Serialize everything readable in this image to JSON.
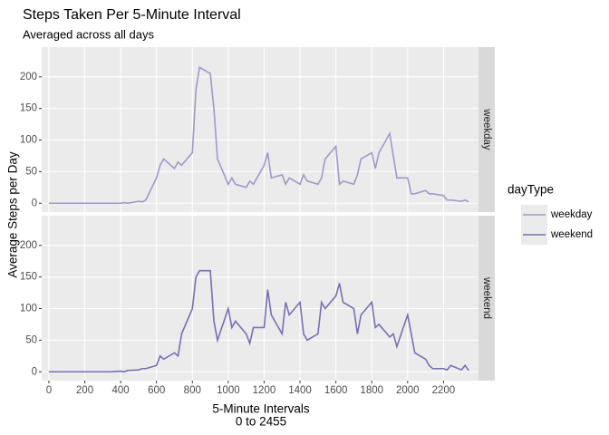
{
  "chart_data": {
    "type": "line",
    "title": "Steps Taken Per 5-Minute Interval",
    "subtitle": "Averaged across all days",
    "x_label": [
      "5-Minute Intervals",
      "0 to 2455"
    ],
    "y_label": "Average Steps per Day",
    "legend_title": "dayType",
    "legend_position": "right",
    "grid": true,
    "x": [
      0,
      20,
      40,
      100,
      120,
      140,
      200,
      220,
      240,
      300,
      320,
      340,
      400,
      420,
      440,
      500,
      520,
      540,
      600,
      620,
      640,
      700,
      720,
      740,
      800,
      820,
      840,
      900,
      920,
      940,
      1000,
      1020,
      1040,
      1100,
      1120,
      1140,
      1200,
      1220,
      1240,
      1300,
      1320,
      1340,
      1400,
      1420,
      1440,
      1500,
      1520,
      1540,
      1600,
      1620,
      1640,
      1700,
      1720,
      1740,
      1800,
      1820,
      1840,
      1900,
      1920,
      1940,
      2000,
      2020,
      2040,
      2100,
      2120,
      2140,
      2200,
      2220,
      2240,
      2300,
      2320,
      2340
    ],
    "series": [
      {
        "name": "weekday",
        "color": "#9e9ac8",
        "values": [
          0,
          0,
          0,
          0,
          0,
          0,
          0,
          0,
          0,
          0,
          0,
          0,
          0,
          1,
          0,
          3,
          2,
          5,
          40,
          60,
          70,
          55,
          65,
          60,
          80,
          180,
          215,
          205,
          150,
          70,
          30,
          40,
          30,
          25,
          35,
          30,
          60,
          80,
          40,
          45,
          30,
          40,
          30,
          45,
          35,
          30,
          40,
          70,
          90,
          30,
          35,
          30,
          45,
          70,
          80,
          55,
          80,
          110,
          75,
          40,
          40,
          15,
          15,
          20,
          15,
          15,
          12,
          5,
          5,
          3,
          5,
          2
        ]
      },
      {
        "name": "weekend",
        "color": "#7570b3",
        "values": [
          0,
          0,
          0,
          0,
          0,
          0,
          0,
          0,
          0,
          0,
          0,
          0,
          1,
          0,
          2,
          3,
          5,
          5,
          10,
          25,
          20,
          30,
          25,
          60,
          100,
          150,
          160,
          160,
          80,
          50,
          100,
          70,
          80,
          60,
          45,
          70,
          70,
          130,
          90,
          60,
          110,
          90,
          110,
          60,
          50,
          60,
          110,
          100,
          120,
          140,
          110,
          100,
          60,
          90,
          110,
          70,
          75,
          55,
          60,
          40,
          90,
          60,
          30,
          20,
          10,
          5,
          5,
          3,
          10,
          3,
          10,
          2
        ]
      }
    ],
    "xlim": [
      -40,
      2395
    ],
    "xticks": [
      0,
      200,
      400,
      600,
      800,
      1000,
      1200,
      1400,
      1600,
      1800,
      2000,
      2200
    ],
    "ylim": [
      -14,
      247
    ],
    "yticks": [
      0,
      50,
      100,
      150,
      200
    ]
  }
}
